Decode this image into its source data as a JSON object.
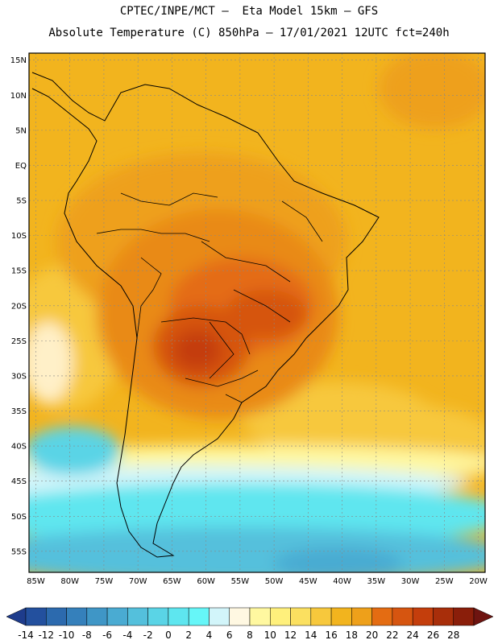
{
  "header": {
    "line1": "CPTEC/INPE/MCT –  Eta Model 15km – GFS",
    "line2": "Absolute Temperature (C) 850hPa – 17/01/2021 12UTC fct=240h"
  },
  "map": {
    "lon_range": [
      -86,
      -19
    ],
    "lat_range": [
      -58,
      16
    ],
    "lat_ticks": [
      "15N",
      "10N",
      "5N",
      "EQ",
      "5S",
      "10S",
      "15S",
      "20S",
      "25S",
      "30S",
      "35S",
      "40S",
      "45S",
      "50S",
      "55S"
    ],
    "lon_ticks": [
      "85W",
      "80W",
      "75W",
      "70W",
      "65W",
      "60W",
      "55W",
      "50W",
      "45W",
      "40W",
      "35W",
      "30W",
      "25W",
      "20W"
    ]
  },
  "colorbar": {
    "labels": [
      "-14",
      "-12",
      "-10",
      "-8",
      "-6",
      "-4",
      "-2",
      "0",
      "2",
      "4",
      "6",
      "8",
      "10",
      "12",
      "14",
      "16",
      "18",
      "20",
      "22",
      "24",
      "26",
      "28"
    ],
    "colors": [
      "#1e3c8c",
      "#23509e",
      "#2c6aae",
      "#3580bb",
      "#3f96c6",
      "#4aabd2",
      "#54c0dc",
      "#5ad4e6",
      "#5ee6ef",
      "#66f6f8",
      "#d2f5fa",
      "#fff8e2",
      "#fff8a0",
      "#fff07c",
      "#fbe060",
      "#f7c83c",
      "#f2b41e",
      "#eea01a",
      "#e46c12",
      "#d65510",
      "#c43e0c",
      "#a82e0a",
      "#8a1e0a",
      "#6e1410"
    ]
  }
}
